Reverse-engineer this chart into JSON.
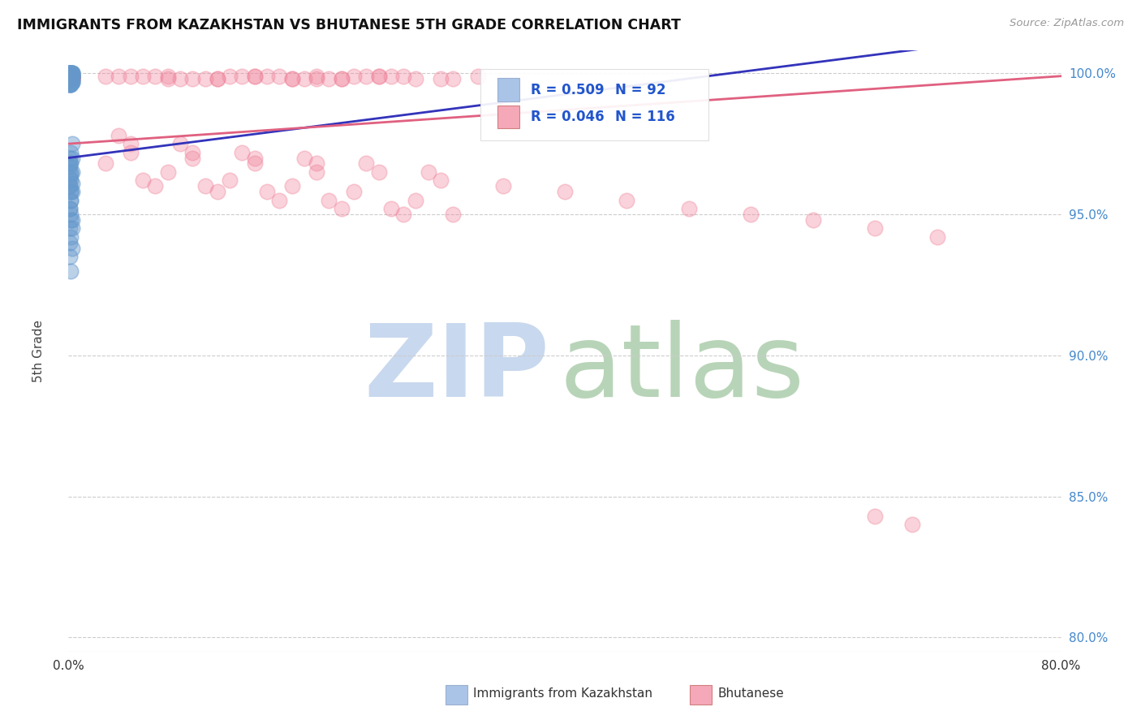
{
  "title": "IMMIGRANTS FROM KAZAKHSTAN VS BHUTANESE 5TH GRADE CORRELATION CHART",
  "source": "Source: ZipAtlas.com",
  "ylabel": "5th Grade",
  "ylabel_right_ticks": [
    "100.0%",
    "95.0%",
    "90.0%",
    "85.0%",
    "80.0%"
  ],
  "ylabel_right_values": [
    1.0,
    0.95,
    0.9,
    0.85,
    0.8
  ],
  "xlim": [
    0.0,
    0.8
  ],
  "ylim": [
    0.795,
    1.008
  ],
  "legend_kaz": {
    "R": 0.509,
    "N": 92,
    "color": "#aac4e8"
  },
  "legend_bhu": {
    "R": 0.046,
    "N": 116,
    "color": "#f4a8b8"
  },
  "scatter_kaz_color": "#6699cc",
  "scatter_bhu_color": "#f08098",
  "trend_kaz_color": "#3333bb",
  "trend_bhu_color": "#e06080",
  "watermark_zip_color": "#c8d8ee",
  "watermark_atlas_color": "#b8d4b8",
  "background_color": "#ffffff",
  "title_fontsize": 12.5,
  "axis_label_color": "#4488cc",
  "legend_text_color": "#2255cc",
  "kaz_x": [
    0.001,
    0.002,
    0.001,
    0.003,
    0.002,
    0.001,
    0.002,
    0.003,
    0.001,
    0.002,
    0.001,
    0.003,
    0.002,
    0.001,
    0.002,
    0.003,
    0.001,
    0.002,
    0.001,
    0.002,
    0.001,
    0.002,
    0.003,
    0.001,
    0.002,
    0.001,
    0.003,
    0.002,
    0.001,
    0.002,
    0.001,
    0.002,
    0.001,
    0.003,
    0.002,
    0.001,
    0.002,
    0.003,
    0.001,
    0.002,
    0.001,
    0.002,
    0.001,
    0.003,
    0.002,
    0.001,
    0.002,
    0.001,
    0.003,
    0.002,
    0.001,
    0.002,
    0.001,
    0.003,
    0.002,
    0.001,
    0.002,
    0.003,
    0.001,
    0.002,
    0.003,
    0.002,
    0.001,
    0.002,
    0.003,
    0.002,
    0.001,
    0.003,
    0.002,
    0.001,
    0.002,
    0.003,
    0.001,
    0.002,
    0.001,
    0.003,
    0.002,
    0.001,
    0.002,
    0.003,
    0.001,
    0.002,
    0.001,
    0.003,
    0.002,
    0.001,
    0.002,
    0.003,
    0.001,
    0.002,
    0.001,
    0.002
  ],
  "kaz_y": [
    1.0,
    0.999,
    0.999,
    1.0,
    0.999,
    1.0,
    0.999,
    1.0,
    0.999,
    1.0,
    0.999,
    1.0,
    0.999,
    1.0,
    0.999,
    1.0,
    0.999,
    1.0,
    0.999,
    1.0,
    0.999,
    1.0,
    0.999,
    1.0,
    0.999,
    1.0,
    0.999,
    1.0,
    0.999,
    1.0,
    0.998,
    0.999,
    0.998,
    0.999,
    0.998,
    0.999,
    0.998,
    0.999,
    0.998,
    0.999,
    0.998,
    0.999,
    0.997,
    0.998,
    0.997,
    0.998,
    0.997,
    0.998,
    0.997,
    0.998,
    0.996,
    0.997,
    0.996,
    0.997,
    0.996,
    0.997,
    0.996,
    0.997,
    0.996,
    0.997,
    0.975,
    0.972,
    0.97,
    0.968,
    0.965,
    0.962,
    0.96,
    0.958,
    0.955,
    0.952,
    0.95,
    0.948,
    0.945,
    0.942,
    0.94,
    0.938,
    0.955,
    0.952,
    0.948,
    0.945,
    0.96,
    0.958,
    0.963,
    0.961,
    0.958,
    0.968,
    0.965,
    0.97,
    0.967,
    0.964,
    0.935,
    0.93
  ],
  "bhu_x": [
    0.001,
    0.08,
    0.12,
    0.15,
    0.18,
    0.2,
    0.22,
    0.25,
    0.05,
    0.1,
    0.15,
    0.2,
    0.25,
    0.07,
    0.12,
    0.17,
    0.22,
    0.27,
    0.3,
    0.04,
    0.09,
    0.14,
    0.19,
    0.24,
    0.06,
    0.11,
    0.16,
    0.21,
    0.26,
    0.31,
    0.03,
    0.08,
    0.13,
    0.18,
    0.23,
    0.28,
    0.33,
    0.05,
    0.1,
    0.15,
    0.2,
    0.25,
    0.3,
    0.07,
    0.12,
    0.17,
    0.22,
    0.27,
    0.03,
    0.08,
    0.13,
    0.18,
    0.23,
    0.28,
    0.04,
    0.09,
    0.14,
    0.19,
    0.24,
    0.29,
    0.06,
    0.11,
    0.16,
    0.21,
    0.26,
    0.31,
    0.05,
    0.1,
    0.15,
    0.2,
    0.35,
    0.4,
    0.45,
    0.5,
    0.55,
    0.6,
    0.65,
    0.7,
    0.002,
    0.003,
    0.001,
    0.002,
    0.003,
    0.001,
    0.002,
    0.003,
    0.001,
    0.002,
    0.003,
    0.001,
    0.002,
    0.003,
    0.001,
    0.002,
    0.003,
    0.001,
    0.002,
    0.003,
    0.001,
    0.002,
    0.003,
    0.001,
    0.002,
    0.003,
    0.001,
    0.002,
    0.003,
    0.001,
    0.002,
    0.003,
    0.001,
    0.002,
    0.003,
    0.001,
    0.65,
    0.68
  ],
  "bhu_y": [
    0.999,
    0.999,
    0.998,
    0.999,
    0.998,
    0.999,
    0.998,
    0.999,
    0.999,
    0.998,
    0.999,
    0.998,
    0.999,
    0.999,
    0.998,
    0.999,
    0.998,
    0.999,
    0.998,
    0.999,
    0.998,
    0.999,
    0.998,
    0.999,
    0.999,
    0.998,
    0.999,
    0.998,
    0.999,
    0.998,
    0.999,
    0.998,
    0.999,
    0.998,
    0.999,
    0.998,
    0.999,
    0.975,
    0.972,
    0.97,
    0.968,
    0.965,
    0.962,
    0.96,
    0.958,
    0.955,
    0.952,
    0.95,
    0.968,
    0.965,
    0.962,
    0.96,
    0.958,
    0.955,
    0.978,
    0.975,
    0.972,
    0.97,
    0.968,
    0.965,
    0.962,
    0.96,
    0.958,
    0.955,
    0.952,
    0.95,
    0.972,
    0.97,
    0.968,
    0.965,
    0.96,
    0.958,
    0.955,
    0.952,
    0.95,
    0.948,
    0.945,
    0.942,
    0.999,
    0.998,
    0.999,
    0.998,
    0.999,
    0.998,
    0.999,
    0.998,
    0.999,
    0.998,
    0.999,
    0.998,
    0.999,
    0.998,
    0.999,
    0.998,
    0.999,
    0.998,
    0.999,
    0.998,
    0.999,
    0.998,
    0.999,
    0.998,
    0.999,
    0.998,
    0.999,
    0.998,
    0.999,
    0.998,
    0.999,
    0.998,
    0.999,
    0.998,
    0.999,
    0.998,
    0.843,
    0.84
  ],
  "bhu_outlier_x": [
    0.62
  ],
  "bhu_outlier_y": [
    0.843
  ]
}
